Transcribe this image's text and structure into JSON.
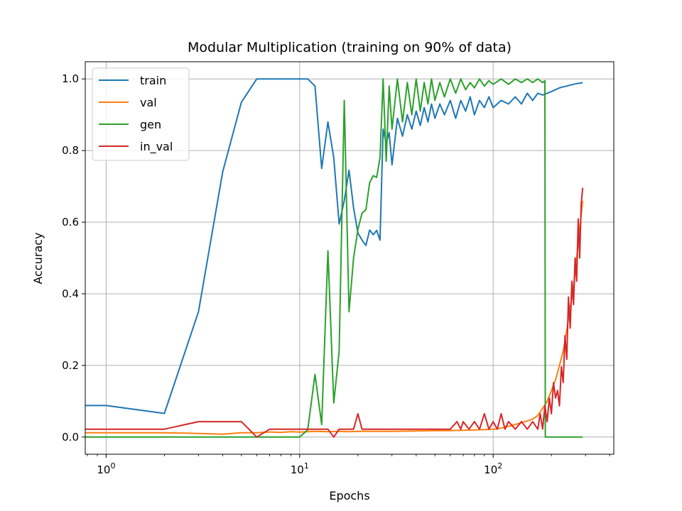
{
  "chart_data": {
    "type": "line",
    "title": "Modular Multiplication (training on 90% of data)",
    "xlabel": "Epochs",
    "ylabel": "Accuracy",
    "xscale": "log",
    "xlim": [
      0.78,
      420
    ],
    "ylim": [
      -0.048,
      1.048
    ],
    "xticks": [
      {
        "value": 1,
        "base": "10",
        "exp": "0"
      },
      {
        "value": 10,
        "base": "10",
        "exp": "1"
      },
      {
        "value": 100,
        "base": "10",
        "exp": "2"
      }
    ],
    "yticks": [
      {
        "value": 0.0,
        "label": "0.0"
      },
      {
        "value": 0.2,
        "label": "0.2"
      },
      {
        "value": 0.4,
        "label": "0.4"
      },
      {
        "value": 0.6,
        "label": "0.6"
      },
      {
        "value": 0.8,
        "label": "0.8"
      },
      {
        "value": 1.0,
        "label": "1.0"
      }
    ],
    "grid": true,
    "legend_position": "top-left",
    "series": [
      {
        "name": "train",
        "color": "#1f77b4",
        "x": [
          0.78,
          1,
          2,
          3,
          4,
          5,
          6,
          7,
          8,
          9,
          10,
          11,
          12,
          13,
          14,
          15,
          16,
          17,
          18,
          19,
          20,
          21,
          22,
          23,
          24,
          25,
          26,
          27,
          28,
          29,
          30,
          32,
          34,
          36,
          38,
          40,
          42,
          44,
          46,
          48,
          50,
          53,
          56,
          60,
          64,
          68,
          72,
          76,
          80,
          85,
          90,
          95,
          100,
          110,
          120,
          130,
          140,
          150,
          160,
          170,
          180,
          190,
          200,
          210,
          220,
          230,
          240,
          250,
          260,
          270,
          280,
          290
        ],
        "y": [
          0.088,
          0.088,
          0.066,
          0.35,
          0.74,
          0.935,
          1.0,
          1.0,
          1.0,
          1.0,
          1.0,
          1.0,
          0.98,
          0.75,
          0.88,
          0.78,
          0.595,
          0.66,
          0.745,
          0.64,
          0.57,
          0.55,
          0.535,
          0.578,
          0.565,
          0.577,
          0.55,
          0.86,
          0.82,
          0.85,
          0.76,
          0.89,
          0.84,
          0.9,
          0.86,
          0.91,
          0.87,
          0.92,
          0.88,
          0.93,
          0.89,
          0.93,
          0.9,
          0.94,
          0.89,
          0.94,
          0.91,
          0.95,
          0.9,
          0.94,
          0.92,
          0.95,
          0.92,
          0.94,
          0.93,
          0.95,
          0.93,
          0.96,
          0.94,
          0.96,
          0.955,
          0.96,
          0.965,
          0.97,
          0.975,
          0.978,
          0.98,
          0.983,
          0.985,
          0.987,
          0.988,
          0.99
        ]
      },
      {
        "name": "val",
        "color": "#ff7f0e",
        "x": [
          0.78,
          1,
          2,
          3,
          4,
          5,
          6,
          7,
          8,
          9,
          10,
          12,
          14,
          16,
          18,
          20,
          25,
          30,
          40,
          50,
          60,
          70,
          80,
          90,
          100,
          110,
          120,
          130,
          140,
          150,
          160,
          170,
          180,
          190,
          200,
          210,
          220,
          230,
          240,
          250,
          260,
          270,
          280,
          290
        ],
        "y": [
          0.012,
          0.012,
          0.012,
          0.01,
          0.008,
          0.012,
          0.012,
          0.014,
          0.013,
          0.015,
          0.014,
          0.016,
          0.015,
          0.016,
          0.015,
          0.016,
          0.016,
          0.016,
          0.017,
          0.018,
          0.018,
          0.019,
          0.02,
          0.021,
          0.022,
          0.025,
          0.03,
          0.035,
          0.04,
          0.045,
          0.05,
          0.06,
          0.08,
          0.1,
          0.13,
          0.16,
          0.2,
          0.24,
          0.3,
          0.36,
          0.42,
          0.5,
          0.58,
          0.66
        ]
      },
      {
        "name": "gen",
        "color": "#2ca02c",
        "x": [
          0.78,
          1,
          2,
          3,
          4,
          5,
          6,
          7,
          8,
          9,
          10,
          11,
          12,
          13,
          14,
          15,
          16,
          17,
          18,
          19,
          20,
          21,
          22,
          23,
          24,
          25,
          26,
          27,
          28,
          29,
          30,
          32,
          34,
          36,
          38,
          40,
          42,
          44,
          46,
          48,
          50,
          53,
          56,
          60,
          64,
          68,
          72,
          76,
          80,
          85,
          90,
          95,
          100,
          110,
          120,
          130,
          140,
          150,
          160,
          170,
          180,
          185,
          186,
          190,
          200,
          250,
          290
        ],
        "y": [
          0.0,
          0.0,
          0.0,
          0.0,
          0.0,
          0.0,
          0.0,
          0.0,
          0.0,
          0.0,
          0.0,
          0.02,
          0.175,
          0.035,
          0.52,
          0.095,
          0.24,
          0.94,
          0.35,
          0.5,
          0.58,
          0.625,
          0.635,
          0.71,
          0.73,
          0.725,
          0.78,
          1.0,
          0.77,
          0.98,
          0.86,
          1.0,
          0.88,
          0.99,
          0.9,
          1.0,
          0.91,
          0.99,
          0.93,
          1.0,
          0.94,
          0.99,
          0.95,
          1.0,
          0.96,
          1.0,
          0.97,
          0.99,
          0.975,
          1.0,
          0.98,
          0.995,
          0.985,
          1.0,
          0.985,
          1.0,
          0.99,
          1.0,
          0.99,
          1.0,
          0.99,
          0.995,
          0.0,
          0.0,
          0.0,
          0.0,
          0.0
        ]
      },
      {
        "name": "in_val",
        "color": "#d62728",
        "x": [
          0.78,
          1,
          2,
          3,
          4,
          5,
          6,
          7,
          8,
          9,
          10,
          11,
          12,
          13,
          14,
          15,
          16,
          17,
          18,
          19,
          20,
          21,
          22,
          25,
          30,
          40,
          50,
          60,
          65,
          68,
          70,
          75,
          80,
          85,
          90,
          95,
          100,
          105,
          110,
          115,
          120,
          130,
          140,
          150,
          160,
          170,
          175,
          180,
          185,
          190,
          195,
          200,
          205,
          210,
          215,
          220,
          225,
          230,
          235,
          240,
          245,
          250,
          255,
          260,
          265,
          270,
          275,
          280,
          285,
          290
        ],
        "y": [
          0.022,
          0.022,
          0.022,
          0.043,
          0.043,
          0.043,
          0.0,
          0.022,
          0.022,
          0.022,
          0.022,
          0.022,
          0.022,
          0.022,
          0.022,
          0.0,
          0.022,
          0.022,
          0.022,
          0.022,
          0.065,
          0.022,
          0.022,
          0.022,
          0.022,
          0.022,
          0.022,
          0.022,
          0.043,
          0.022,
          0.043,
          0.022,
          0.043,
          0.022,
          0.065,
          0.022,
          0.043,
          0.022,
          0.065,
          0.022,
          0.043,
          0.022,
          0.043,
          0.022,
          0.043,
          0.022,
          0.065,
          0.022,
          0.087,
          0.043,
          0.109,
          0.065,
          0.152,
          0.109,
          0.13,
          0.087,
          0.196,
          0.152,
          0.283,
          0.217,
          0.391,
          0.304,
          0.435,
          0.37,
          0.5,
          0.435,
          0.609,
          0.5,
          0.652,
          0.696
        ]
      }
    ]
  }
}
